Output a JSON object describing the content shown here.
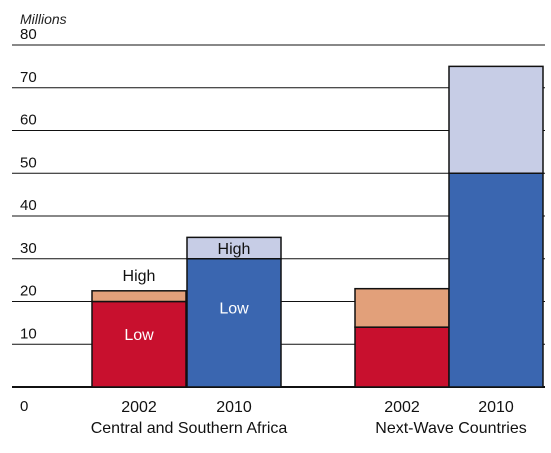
{
  "chart_data": {
    "type": "bar",
    "stacked": true,
    "unit_label": "Millions",
    "y_ticks": [
      "0",
      "10",
      "20",
      "30",
      "40",
      "50",
      "60",
      "70",
      "80"
    ],
    "ylim": [
      0,
      80
    ],
    "grid": true,
    "groups": [
      {
        "label": "Central and Southern Africa",
        "bars": [
          {
            "year": "2002",
            "segments": [
              {
                "series": "Low",
                "value": 20,
                "label": "Low",
                "color": "#c8102e"
              },
              {
                "series": "High",
                "value": 2.5,
                "label": "High",
                "color": "#e2a07a",
                "label_outside": true
              }
            ]
          },
          {
            "year": "2010",
            "segments": [
              {
                "series": "Low",
                "value": 30,
                "label": "Low",
                "color": "#3a66b0"
              },
              {
                "series": "High",
                "value": 5,
                "label": "High",
                "color": "#c7cde6"
              }
            ]
          }
        ]
      },
      {
        "label": "Next-Wave Countries",
        "bars": [
          {
            "year": "2002",
            "segments": [
              {
                "series": "Low",
                "value": 14,
                "color": "#c8102e"
              },
              {
                "series": "High",
                "value": 9,
                "color": "#e2a07a"
              }
            ]
          },
          {
            "year": "2010",
            "segments": [
              {
                "series": "Low",
                "value": 50,
                "color": "#3a66b0"
              },
              {
                "series": "High",
                "value": 25,
                "color": "#c7cde6"
              }
            ]
          }
        ]
      }
    ]
  }
}
